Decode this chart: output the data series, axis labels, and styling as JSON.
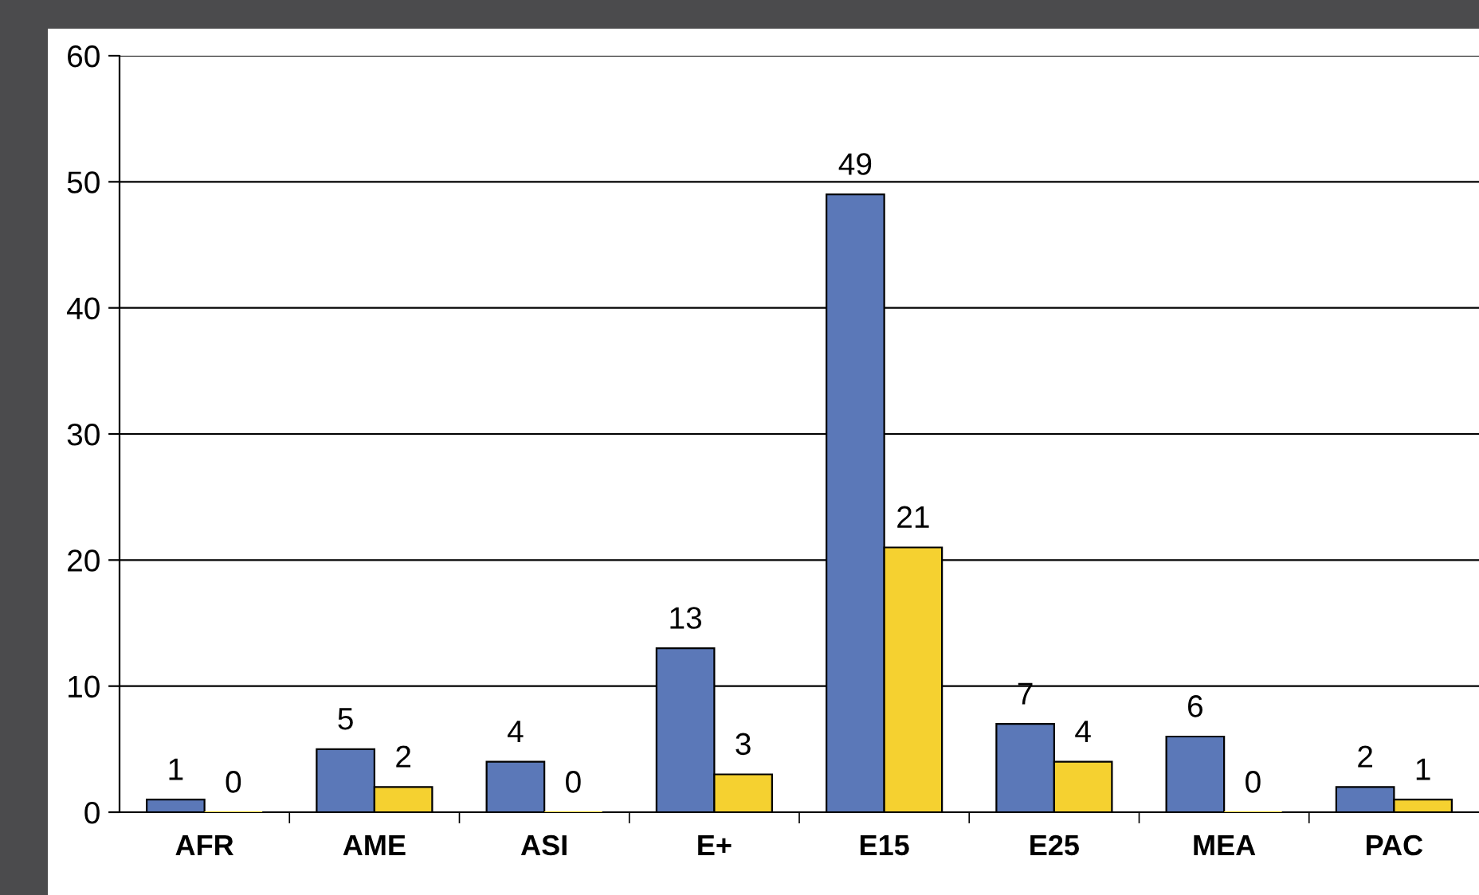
{
  "chart_data": {
    "type": "bar",
    "categories": [
      "AFR",
      "AME",
      "ASI",
      "E+",
      "E15",
      "E25",
      "MEA",
      "PAC"
    ],
    "series": [
      {
        "color": "#5b78b8",
        "values": [
          1,
          5,
          4,
          13,
          49,
          7,
          6,
          2
        ]
      },
      {
        "color": "#f5d130",
        "values": [
          0,
          2,
          0,
          3,
          21,
          4,
          0,
          1
        ]
      }
    ],
    "ylim": [
      0,
      60
    ],
    "yticks": [
      0,
      10,
      20,
      30,
      40,
      50,
      60
    ],
    "grid": "y",
    "data_labels": true
  }
}
